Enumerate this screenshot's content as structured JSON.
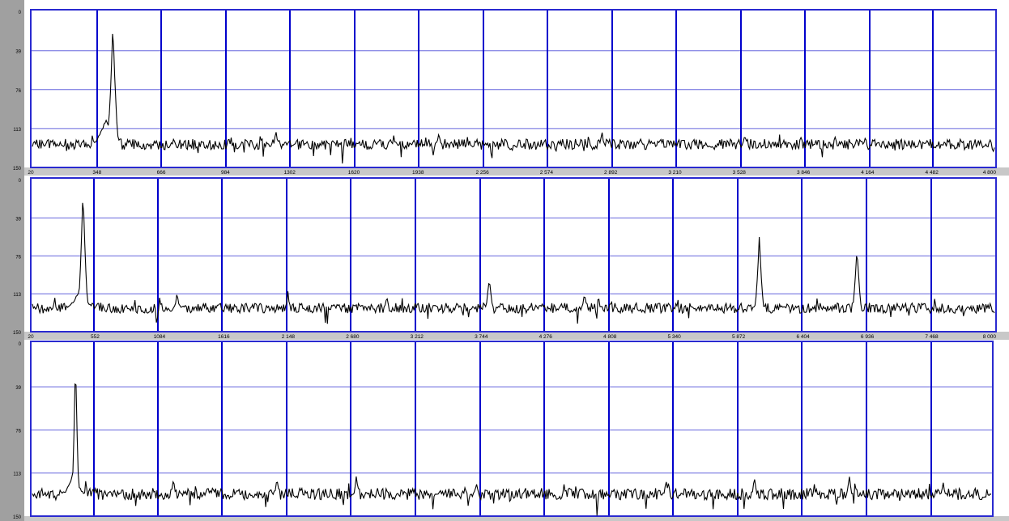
{
  "colors": {
    "side_strip": "#a0a0a0",
    "tick_band": "#c8c8c8",
    "plot_bg": "#ffffff",
    "vertical_grid": "#0000cc",
    "horizontal_grid": "#6666dd",
    "border": "#2a2ad0",
    "trace": "#000000"
  },
  "chart_data": [
    {
      "type": "line",
      "grid": true,
      "ylim": [
        0,
        150
      ],
      "y_ticks": [
        "0",
        "39",
        "76",
        "113",
        "150"
      ],
      "xlim": [
        20,
        4800
      ],
      "x_ticks": [
        20,
        348,
        666,
        984,
        1302,
        1620,
        1938,
        2256,
        2574,
        2892,
        3210,
        3528,
        3846,
        4164,
        4482,
        4800
      ],
      "x_tick_labels": [
        "20",
        "348",
        "666",
        "984",
        "1302",
        "1620",
        "1938",
        "2 256",
        "2 574",
        "2 892",
        "3 210",
        "3 528",
        "3 846",
        "4 164",
        "4 482",
        "4 800"
      ],
      "baseline": 128,
      "noise": 5,
      "peaks": [
        {
          "x": 420,
          "y": 12,
          "width": 30
        },
        {
          "x": 385,
          "y": 105,
          "width": 70
        },
        {
          "x": 1230,
          "y": 115,
          "width": 12
        },
        {
          "x": 2040,
          "y": 118,
          "width": 15
        },
        {
          "x": 2850,
          "y": 116,
          "width": 12
        },
        {
          "x": 3560,
          "y": 120,
          "width": 15
        }
      ]
    },
    {
      "type": "line",
      "grid": true,
      "ylim": [
        0,
        150
      ],
      "y_ticks": [
        "0",
        "39",
        "76",
        "113",
        "150"
      ],
      "xlim": [
        20,
        8000
      ],
      "x_ticks": [
        20,
        552,
        1084,
        1616,
        2148,
        2680,
        3212,
        3744,
        4276,
        4808,
        5340,
        5872,
        6404,
        6936,
        7468,
        8000
      ],
      "x_tick_labels": [
        "20",
        "552",
        "1084",
        "1616",
        "2 148",
        "2 680",
        "3 212",
        "3 744",
        "4 276",
        "4 808",
        "5 340",
        "5 872",
        "6 404",
        "6 936",
        "7 468",
        "8 000"
      ],
      "baseline": 127,
      "noise": 5,
      "peaks": [
        {
          "x": 440,
          "y": 12,
          "width": 45
        },
        {
          "x": 420,
          "y": 108,
          "width": 120
        },
        {
          "x": 1220,
          "y": 112,
          "width": 25
        },
        {
          "x": 2140,
          "y": 110,
          "width": 20
        },
        {
          "x": 2960,
          "y": 113,
          "width": 20
        },
        {
          "x": 3810,
          "y": 97,
          "width": 35
        },
        {
          "x": 4600,
          "y": 112,
          "width": 25
        },
        {
          "x": 6050,
          "y": 56,
          "width": 40
        },
        {
          "x": 6860,
          "y": 68,
          "width": 40
        }
      ]
    },
    {
      "type": "line",
      "grid": true,
      "ylim": [
        0,
        150
      ],
      "y_ticks": [
        "0",
        "39",
        "76",
        "113",
        "150"
      ],
      "baseline": 131,
      "noise": 5,
      "peaks": [
        {
          "x": 0.045,
          "y": 12,
          "width": 0.004
        },
        {
          "x": 0.043,
          "y": 113,
          "width": 0.012
        },
        {
          "x": 0.147,
          "y": 118,
          "width": 0.003
        },
        {
          "x": 0.255,
          "y": 117,
          "width": 0.003
        },
        {
          "x": 0.338,
          "y": 114,
          "width": 0.003
        },
        {
          "x": 0.463,
          "y": 122,
          "width": 0.003
        },
        {
          "x": 0.661,
          "y": 120,
          "width": 0.003
        },
        {
          "x": 0.753,
          "y": 117,
          "width": 0.003
        },
        {
          "x": 0.852,
          "y": 114,
          "width": 0.003
        },
        {
          "x": 0.95,
          "y": 122,
          "width": 0.003
        }
      ]
    }
  ]
}
